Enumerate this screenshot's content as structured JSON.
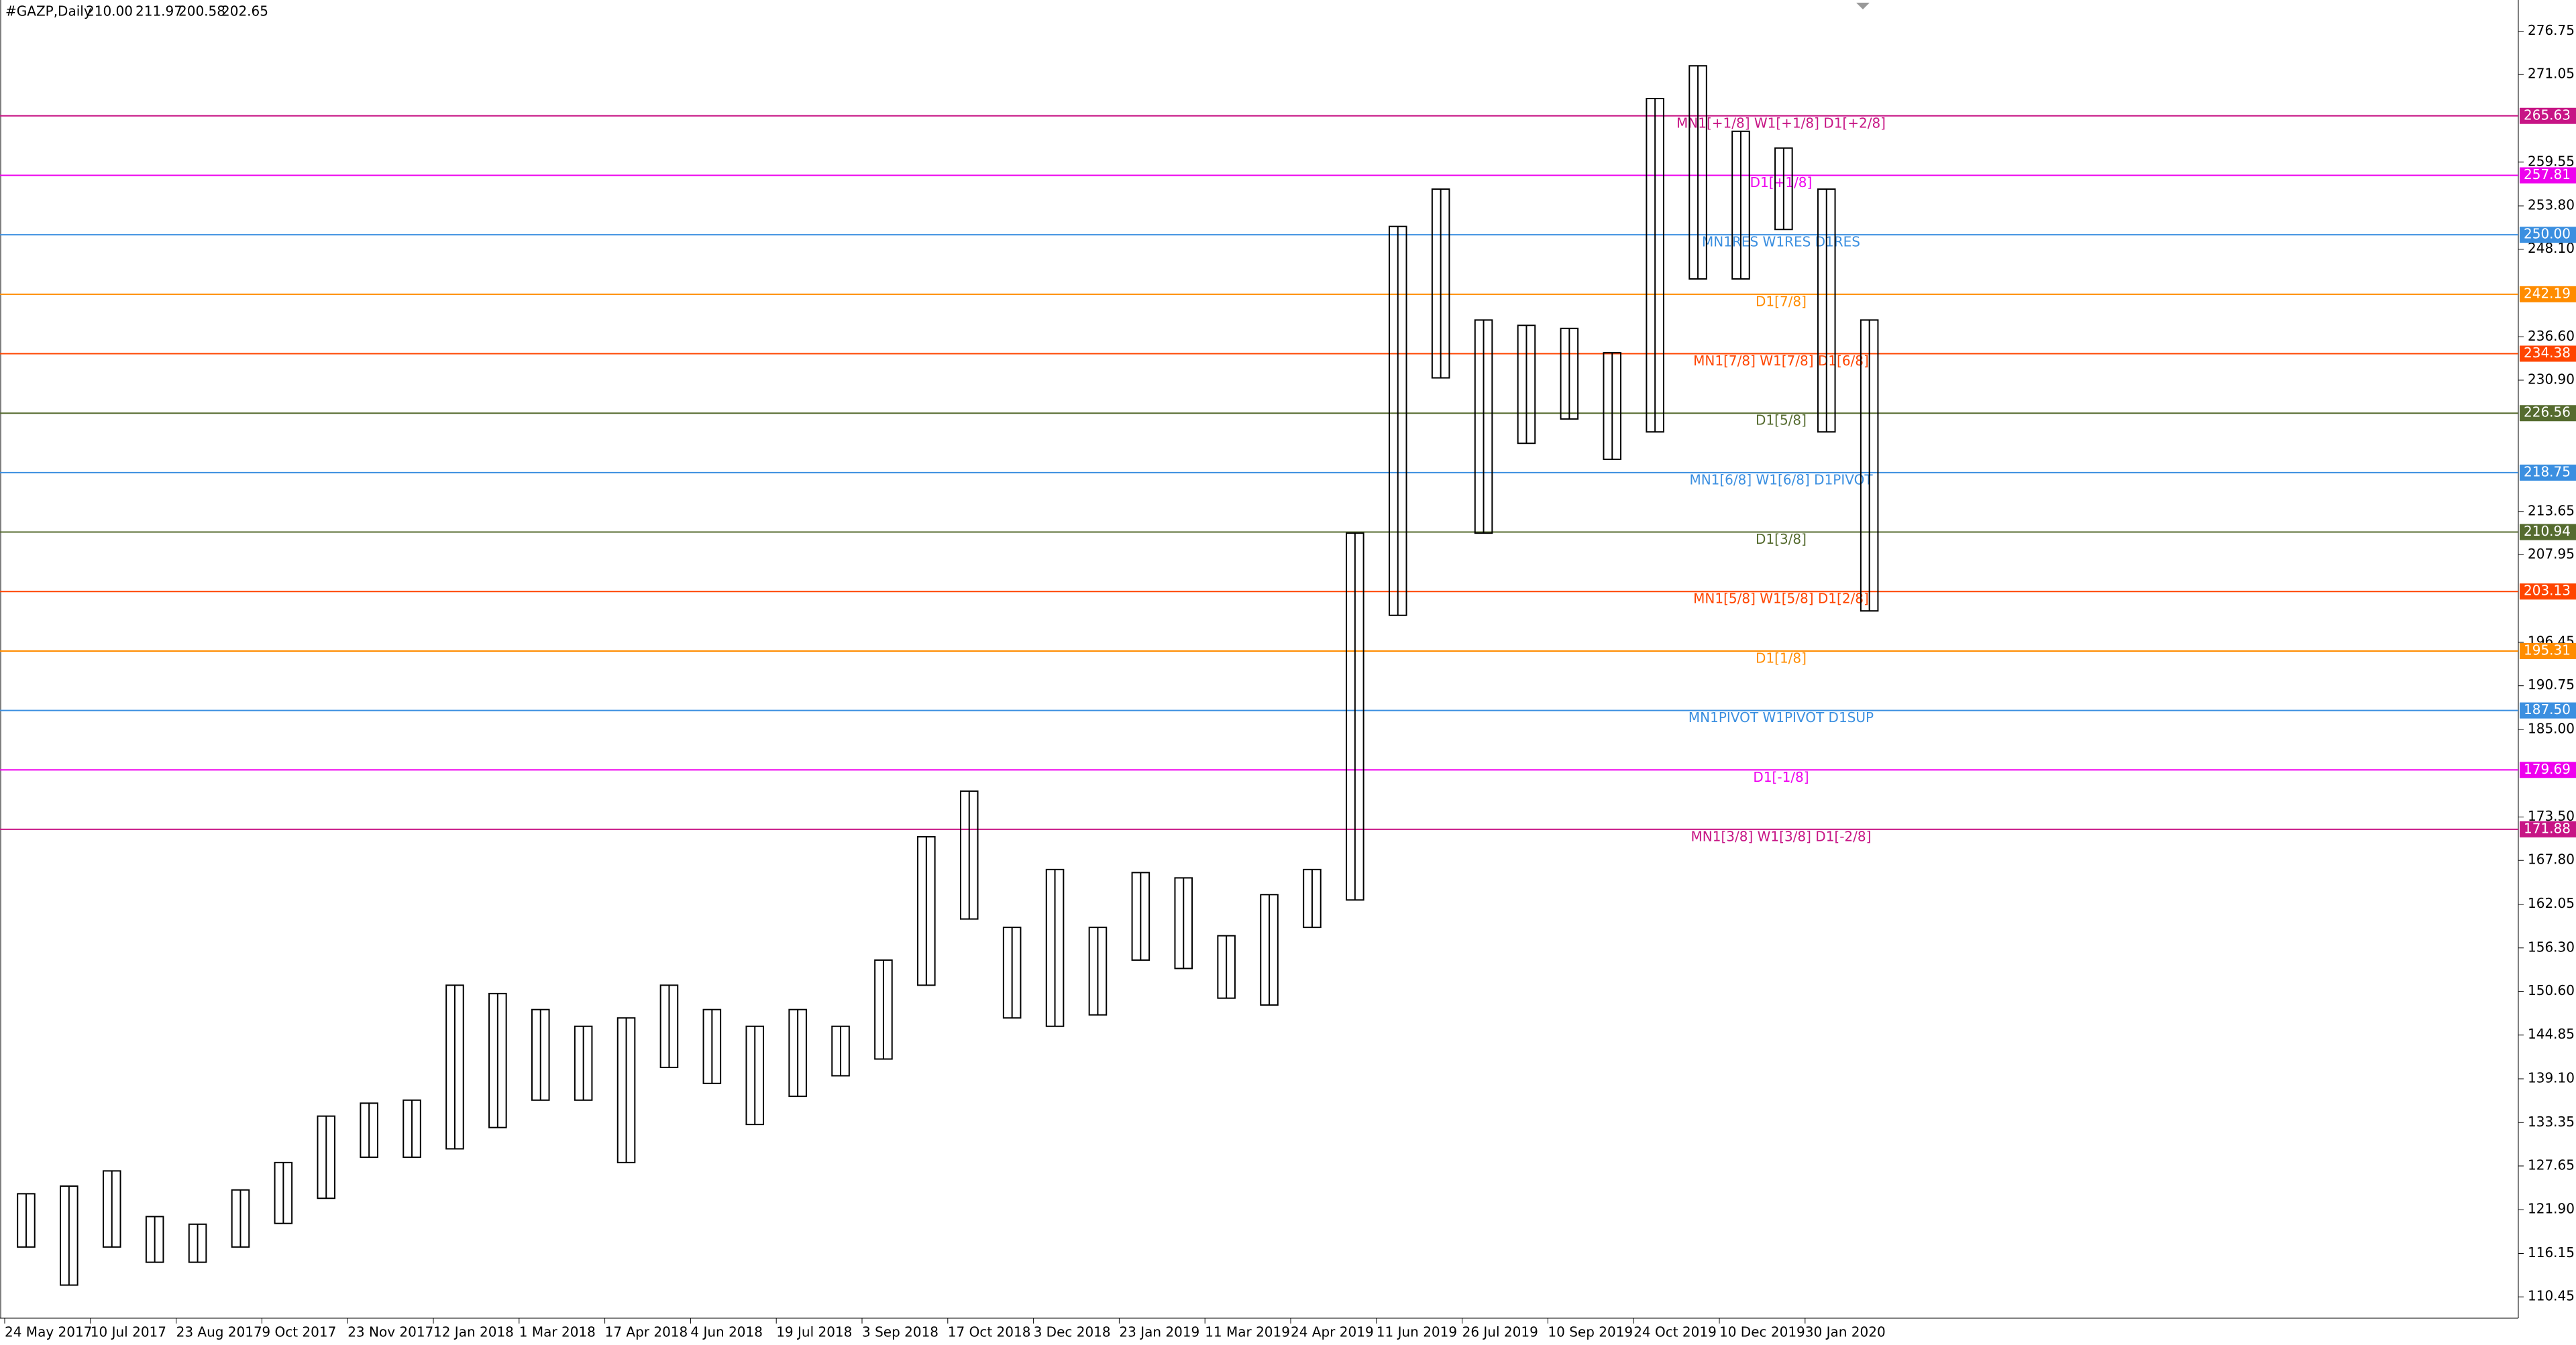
{
  "header": {
    "symbol": "#GAZP,Daily",
    "ohlc": [
      "210.00",
      "211.97",
      "200.58",
      "202.65"
    ]
  },
  "chart_data": {
    "type": "range-bar",
    "categories": [
      "24 May 2017",
      null,
      "10 Jul 2017",
      null,
      "23 Aug 2017",
      null,
      "9 Oct 2017",
      null,
      "23 Nov 2017",
      null,
      "12 Jan 2018",
      null,
      "1 Mar 2018",
      null,
      "17 Apr 2018",
      null,
      "4 Jun 2018",
      null,
      "19 Jul 2018",
      null,
      "3 Sep 2018",
      null,
      "17 Oct 2018",
      null,
      "3 Dec 2018",
      null,
      "23 Jan 2019",
      null,
      "11 Mar 2019",
      null,
      "24 Apr 2019",
      null,
      "11 Jun 2019",
      null,
      "26 Jul 2019",
      null,
      "10 Sep 2019",
      null,
      "24 Oct 2019",
      null,
      "10 Dec 2019",
      null,
      "30 Jan 2020",
      null
    ],
    "color": "#000000",
    "low": [
      117,
      112,
      117,
      115,
      115,
      117,
      120.1,
      123.4,
      128.8,
      128.8,
      129.9,
      132.7,
      136.3,
      136.3,
      128.1,
      140.6,
      138.5,
      133.1,
      136.8,
      139.5,
      141.7,
      151.4,
      160.1,
      147.1,
      146,
      147.5,
      154.7,
      153.6,
      149.7,
      148.8,
      159,
      162.6,
      200,
      231.2,
      210.8,
      222.6,
      225.8,
      220.5,
      224.1,
      244.2,
      244.2,
      250.7,
      224.1,
      200.58
    ],
    "high": [
      124,
      125,
      127,
      121,
      120,
      124.5,
      128.1,
      134.2,
      135.9,
      136.3,
      151.4,
      150.3,
      148.2,
      146,
      147.1,
      151.4,
      148.2,
      146,
      148.2,
      146,
      154.7,
      170.9,
      176.9,
      159,
      166.6,
      159,
      166.2,
      165.5,
      157.9,
      163.3,
      166.6,
      210.8,
      251.1,
      256,
      238.8,
      238.1,
      237.7,
      234.5,
      267.9,
      272.2,
      263.6,
      261.4,
      256,
      238.8
    ],
    "ylim": [
      107.65,
      280.85
    ],
    "yticks": [
      276.75,
      271.05,
      259.55,
      {
        "value": 253.8,
        "label": "253.80"
      },
      {
        "value": 248.1,
        "label": "248.10"
      },
      {
        "value": 236.6,
        "label": "236.60"
      },
      {
        "value": 230.9,
        "label": "230.90"
      },
      213.65,
      207.95,
      196.45,
      190.75,
      {
        "value": 185,
        "label": "185.00"
      },
      {
        "value": 173.5,
        "label": "173.50"
      },
      {
        "value": 167.8,
        "label": "167.80"
      },
      162.05,
      {
        "value": 156.3,
        "label": "156.30"
      },
      {
        "value": 150.6,
        "label": "150.60"
      },
      144.85,
      {
        "value": 139.1,
        "label": "139.10"
      },
      133.35,
      127.65,
      {
        "value": 121.9,
        "label": "121.90"
      },
      116.15,
      110.45
    ],
    "levels": [
      {
        "value": 265.63,
        "label": "MN1[+1/8] W1[+1/8] D1[+2/8]",
        "color": "#c71585"
      },
      {
        "value": 257.81,
        "label": "D1[+1/8]",
        "color": "#ee00ee"
      },
      {
        "value": 250,
        "value_label": "250.00",
        "label": "MN1RES W1RES D1RES",
        "color": "#3b8fe0"
      },
      {
        "value": 242.19,
        "label": "D1[7/8]",
        "color": "#ff8c00"
      },
      {
        "value": 234.38,
        "label": "MN1[7/8] W1[7/8] D1[6/8]",
        "color": "#ff4500"
      },
      {
        "value": 226.56,
        "label": "D1[5/8]",
        "color": "#556b2f"
      },
      {
        "value": 218.75,
        "label": "MN1[6/8] W1[6/8] D1PIVOT",
        "color": "#3b8fe0"
      },
      {
        "value": 210.94,
        "label": "D1[3/8]",
        "color": "#556b2f"
      },
      {
        "value": 203.13,
        "label": "MN1[5/8] W1[5/8] D1[2/8]",
        "color": "#ff4500"
      },
      {
        "value": 195.31,
        "label": "D1[1/8]",
        "color": "#ff8c00"
      },
      {
        "value": 187.5,
        "value_label": "187.50",
        "label": "MN1PIVOT W1PIVOT D1SUP",
        "color": "#3b8fe0"
      },
      {
        "value": 179.69,
        "label": "D1[-1/8]",
        "color": "#ee00ee"
      },
      {
        "value": 171.88,
        "label": "MN1[3/8] W1[3/8] D1[-2/8]",
        "color": "#c71585"
      }
    ]
  }
}
